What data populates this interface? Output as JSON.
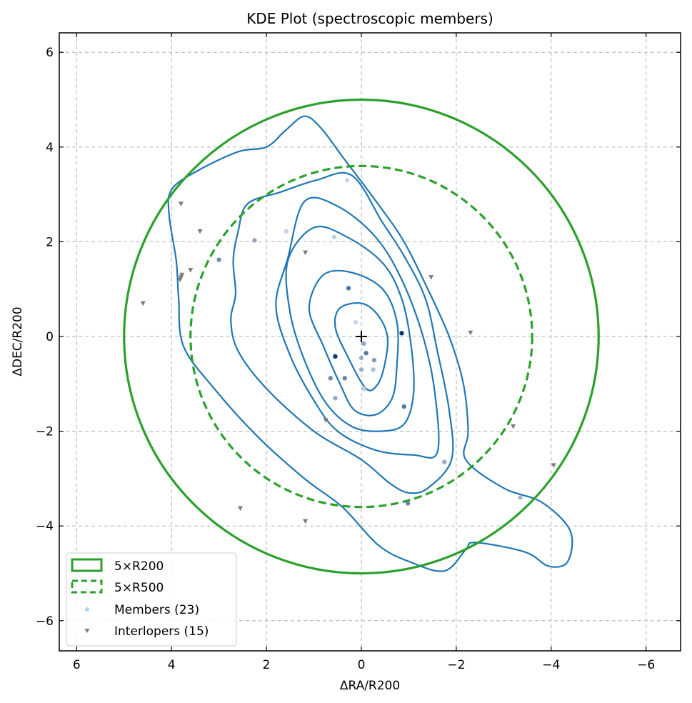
{
  "chart_data": {
    "type": "scatter",
    "title": "KDE Plot (spectroscopic members)",
    "xlabel": "ΔRA/R200",
    "ylabel": "ΔDEC/R200",
    "xlim": [
      6.6,
      -6.8
    ],
    "ylim": [
      -6.6,
      6.4
    ],
    "x_ticks": [
      6,
      4,
      2,
      0,
      -2,
      -4,
      -6
    ],
    "y_ticks": [
      6,
      4,
      2,
      0,
      -2,
      -4,
      -6
    ],
    "x_tick_labels": [
      "6",
      "4",
      "2",
      "0",
      "−2",
      "−4",
      "−6"
    ],
    "y_tick_labels": [
      "6",
      "4",
      "2",
      "0",
      "−2",
      "−4",
      "−6"
    ],
    "grid": true,
    "legend_position": "lower-left",
    "colors": {
      "circle": "#2ca02c",
      "contour": "#1f77b4",
      "interloper": "#7a7a7a",
      "center": "#000000"
    },
    "circles": [
      {
        "name": "5×R200",
        "radius": 5.0,
        "style": "solid"
      },
      {
        "name": "5×R500",
        "radius": 3.6,
        "style": "dashed"
      }
    ],
    "center": [
      0,
      0
    ],
    "contours": [
      [
        [
          0,
          0.7
        ],
        [
          -0.35,
          0.45
        ],
        [
          -0.55,
          0
        ],
        [
          -0.5,
          -0.55
        ],
        [
          -0.35,
          -1.0
        ],
        [
          -0.1,
          -1.1
        ],
        [
          0.3,
          -0.4
        ],
        [
          0.55,
          0.2
        ],
        [
          0.45,
          0.6
        ]
      ],
      [
        [
          0.2,
          1.35
        ],
        [
          -0.45,
          1.0
        ],
        [
          -0.75,
          0.3
        ],
        [
          -0.75,
          -0.6
        ],
        [
          -0.65,
          -1.3
        ],
        [
          -0.3,
          -1.65
        ],
        [
          0.15,
          -1.55
        ],
        [
          0.45,
          -1.0
        ],
        [
          0.8,
          -0.2
        ],
        [
          1.1,
          0.6
        ],
        [
          0.8,
          1.3
        ]
      ],
      [
        [
          1.0,
          2.3
        ],
        [
          0.3,
          2.1
        ],
        [
          -0.45,
          1.55
        ],
        [
          -0.85,
          0.8
        ],
        [
          -1.05,
          -0.2
        ],
        [
          -1.1,
          -1.2
        ],
        [
          -0.9,
          -1.85
        ],
        [
          -0.4,
          -2.0
        ],
        [
          0.2,
          -1.9
        ],
        [
          0.75,
          -1.4
        ],
        [
          1.2,
          -0.5
        ],
        [
          1.5,
          0.5
        ],
        [
          1.55,
          1.6
        ]
      ],
      [
        [
          1.2,
          2.85
        ],
        [
          0.5,
          2.75
        ],
        [
          -0.3,
          2.1
        ],
        [
          -0.85,
          1.2
        ],
        [
          -1.3,
          0.0
        ],
        [
          -1.55,
          -1.2
        ],
        [
          -1.6,
          -2.45
        ],
        [
          -1.1,
          -2.5
        ],
        [
          -0.3,
          -2.4
        ],
        [
          0.5,
          -2.0
        ],
        [
          1.0,
          -1.35
        ],
        [
          1.5,
          -0.4
        ],
        [
          1.8,
          0.65
        ],
        [
          1.55,
          1.65
        ]
      ],
      [
        [
          0.95,
          3.3
        ],
        [
          0.2,
          3.4
        ],
        [
          -0.45,
          2.4
        ],
        [
          -0.9,
          1.7
        ],
        [
          -1.35,
          0.8
        ],
        [
          -1.6,
          -0.3
        ],
        [
          -1.85,
          -1.55
        ],
        [
          -1.9,
          -2.6
        ],
        [
          -1.4,
          -3.2
        ],
        [
          -1.0,
          -3.3
        ],
        [
          -0.6,
          -3.1
        ],
        [
          0.0,
          -2.6
        ],
        [
          1.0,
          -2.0
        ],
        [
          2.0,
          -1.1
        ],
        [
          2.6,
          -0.3
        ],
        [
          2.75,
          0.35
        ],
        [
          2.65,
          0.9
        ],
        [
          2.7,
          1.6
        ],
        [
          2.6,
          2.2
        ],
        [
          2.4,
          2.8
        ],
        [
          1.7,
          3.05
        ]
      ],
      [
        [
          1.6,
          4.35
        ],
        [
          1.2,
          4.65
        ],
        [
          0.85,
          4.4
        ],
        [
          0.4,
          3.8
        ],
        [
          -0.35,
          2.8
        ],
        [
          -0.9,
          2.0
        ],
        [
          -1.4,
          1.0
        ],
        [
          -1.85,
          0.0
        ],
        [
          -2.15,
          -1.0
        ],
        [
          -2.25,
          -2.0
        ],
        [
          -2.2,
          -2.6
        ],
        [
          -3.0,
          -3.2
        ],
        [
          -3.8,
          -3.5
        ],
        [
          -4.4,
          -4.1
        ],
        [
          -4.35,
          -4.75
        ],
        [
          -3.95,
          -4.85
        ],
        [
          -3.45,
          -4.55
        ],
        [
          -2.4,
          -4.35
        ],
        [
          -2.2,
          -4.5
        ],
        [
          -1.75,
          -4.95
        ],
        [
          -1.0,
          -4.75
        ],
        [
          -0.35,
          -4.4
        ],
        [
          0.4,
          -3.6
        ],
        [
          1.2,
          -3.0
        ],
        [
          2.2,
          -2.1
        ],
        [
          3.1,
          -1.1
        ],
        [
          3.75,
          -0.2
        ],
        [
          3.85,
          0.8
        ],
        [
          3.9,
          1.6
        ],
        [
          4.05,
          2.55
        ],
        [
          4.0,
          3.1
        ],
        [
          3.45,
          3.5
        ],
        [
          2.6,
          3.9
        ],
        [
          2.0,
          4.0
        ]
      ]
    ],
    "members": [
      {
        "x": 0.27,
        "y": 1.02,
        "shade": 0.62
      },
      {
        "x": -0.05,
        "y": -0.15,
        "shade": 0.35
      },
      {
        "x": -0.1,
        "y": -0.35,
        "shade": 0.6
      },
      {
        "x": 0.0,
        "y": -0.45,
        "shade": 0.3
      },
      {
        "x": 0.55,
        "y": -0.42,
        "shade": 0.97
      },
      {
        "x": -0.27,
        "y": -0.5,
        "shade": 0.4
      },
      {
        "x": 0.35,
        "y": -0.88,
        "shade": 0.55
      },
      {
        "x": 0.65,
        "y": -0.88,
        "shade": 0.5
      },
      {
        "x": 0.0,
        "y": -0.7,
        "shade": 0.3
      },
      {
        "x": 0.55,
        "y": -1.3,
        "shade": 0.32
      },
      {
        "x": -0.85,
        "y": 0.07,
        "shade": 0.99
      },
      {
        "x": -0.9,
        "y": -1.48,
        "shade": 0.6
      },
      {
        "x": -1.75,
        "y": -2.65,
        "shade": 0.3
      },
      {
        "x": -0.98,
        "y": -3.52,
        "shade": 0.55
      },
      {
        "x": -3.35,
        "y": -3.4,
        "shade": 0.25
      },
      {
        "x": 0.57,
        "y": 2.1,
        "shade": 0.12
      },
      {
        "x": 1.58,
        "y": 2.22,
        "shade": 0.1
      },
      {
        "x": 2.25,
        "y": 2.03,
        "shade": 0.35
      },
      {
        "x": 3.0,
        "y": 1.62,
        "shade": 0.5
      },
      {
        "x": 0.3,
        "y": 3.3,
        "shade": 0.08
      },
      {
        "x": 0.12,
        "y": 0.3,
        "shade": 0.08
      },
      {
        "x": -0.25,
        "y": -0.7,
        "shade": 0.2
      },
      {
        "x": -0.05,
        "y": -1.1,
        "shade": 0.15
      }
    ],
    "interlopers": [
      {
        "x": 4.6,
        "y": 0.7
      },
      {
        "x": 3.8,
        "y": 2.8
      },
      {
        "x": 3.4,
        "y": 2.22
      },
      {
        "x": 3.8,
        "y": 1.25
      },
      {
        "x": 3.82,
        "y": 1.2
      },
      {
        "x": 3.6,
        "y": 1.4
      },
      {
        "x": 1.18,
        "y": 1.77
      },
      {
        "x": 0.75,
        "y": -1.77
      },
      {
        "x": -1.47,
        "y": 1.25
      },
      {
        "x": -2.3,
        "y": 0.08
      },
      {
        "x": -3.2,
        "y": -1.9
      },
      {
        "x": -4.05,
        "y": -2.72
      },
      {
        "x": 2.55,
        "y": -3.63
      },
      {
        "x": 1.18,
        "y": -3.9
      },
      {
        "x": 3.78,
        "y": 1.3
      }
    ],
    "legend": [
      {
        "label": "5×R200",
        "kind": "circle-solid"
      },
      {
        "label": "5×R500",
        "kind": "circle-dashed"
      },
      {
        "label": "Members (23)",
        "kind": "member"
      },
      {
        "label": "Interlopers (15)",
        "kind": "interloper"
      }
    ]
  }
}
